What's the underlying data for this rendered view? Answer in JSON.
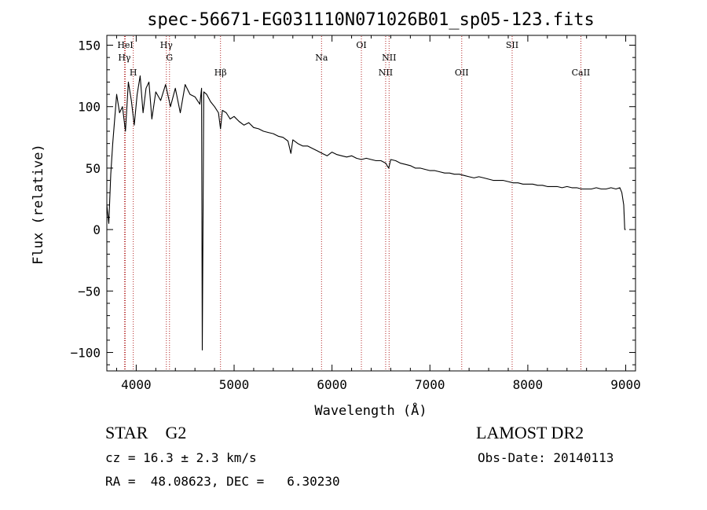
{
  "chart_data": {
    "type": "line",
    "title": "spec-56671-EG031110N071026B01_sp05-123.fits",
    "xlabel": "Wavelength (Å)",
    "ylabel": "Flux (relative)",
    "xlim": [
      3700,
      9100
    ],
    "ylim": [
      -115,
      158
    ],
    "x_ticks": [
      4000,
      5000,
      6000,
      7000,
      8000,
      9000
    ],
    "y_ticks": [
      -100,
      -50,
      0,
      50,
      100,
      150
    ],
    "grid": false,
    "legend": "none",
    "line_color": "#000000",
    "marker_color": "#b22222",
    "series": [
      {
        "x": [
          3700,
          3720,
          3740,
          3760,
          3780,
          3800,
          3830,
          3860,
          3890,
          3920,
          3950,
          3980,
          4010,
          4040,
          4070,
          4100,
          4130,
          4160,
          4200,
          4250,
          4300,
          4350,
          4400,
          4450,
          4500,
          4550,
          4600,
          4650,
          4668,
          4675,
          4690,
          4720,
          4760,
          4800,
          4840,
          4861,
          4880,
          4920,
          4960,
          5000,
          5050,
          5100,
          5150,
          5200,
          5250,
          5300,
          5350,
          5400,
          5450,
          5500,
          5550,
          5580,
          5600,
          5650,
          5700,
          5750,
          5800,
          5850,
          5900,
          5950,
          6000,
          6050,
          6100,
          6150,
          6200,
          6250,
          6300,
          6350,
          6400,
          6450,
          6500,
          6550,
          6563,
          6580,
          6600,
          6650,
          6700,
          6750,
          6800,
          6850,
          6900,
          6950,
          7000,
          7050,
          7100,
          7150,
          7200,
          7250,
          7300,
          7350,
          7400,
          7450,
          7500,
          7550,
          7600,
          7650,
          7700,
          7750,
          7800,
          7850,
          7900,
          7950,
          8000,
          8050,
          8100,
          8150,
          8200,
          8250,
          8300,
          8350,
          8400,
          8450,
          8500,
          8550,
          8600,
          8650,
          8700,
          8750,
          8800,
          8850,
          8900,
          8940,
          8960,
          8980,
          8990,
          9000
        ],
        "y": [
          20,
          5,
          45,
          70,
          90,
          110,
          95,
          100,
          80,
          120,
          105,
          85,
          110,
          125,
          95,
          115,
          120,
          90,
          112,
          105,
          118,
          100,
          115,
          95,
          118,
          110,
          108,
          102,
          115,
          -98,
          112,
          110,
          104,
          100,
          95,
          82,
          97,
          95,
          90,
          92,
          88,
          85,
          87,
          83,
          82,
          80,
          79,
          78,
          76,
          75,
          72,
          62,
          73,
          70,
          68,
          68,
          66,
          64,
          62,
          60,
          63,
          61,
          60,
          59,
          60,
          58,
          57,
          58,
          57,
          56,
          56,
          54,
          52,
          50,
          57,
          56,
          54,
          53,
          52,
          50,
          50,
          49,
          48,
          48,
          47,
          46,
          46,
          45,
          45,
          44,
          43,
          42,
          43,
          42,
          41,
          40,
          40,
          40,
          39,
          38,
          38,
          37,
          37,
          37,
          36,
          36,
          35,
          35,
          35,
          34,
          35,
          34,
          34,
          33,
          33,
          33,
          34,
          33,
          33,
          34,
          33,
          34,
          30,
          20,
          0,
          0
        ]
      }
    ],
    "lines": [
      {
        "name": "Hγ",
        "x": 3880,
        "row": 2
      },
      {
        "name": "HeI",
        "x": 3889,
        "row": 1
      },
      {
        "name": "H",
        "x": 3970,
        "row": 3
      },
      {
        "name": "Hγ",
        "x": 4308,
        "row": 1
      },
      {
        "name": "G",
        "x": 4340,
        "row": 2
      },
      {
        "name": "Hβ",
        "x": 4861,
        "row": 3
      },
      {
        "name": "Na",
        "x": 5893,
        "row": 2
      },
      {
        "name": "OI",
        "x": 6300,
        "row": 1
      },
      {
        "name": "NII",
        "x": 6548,
        "row": 3
      },
      {
        "name": "NII",
        "x": 6583,
        "row": 2
      },
      {
        "name": "OII",
        "x": 7325,
        "row": 3
      },
      {
        "name": "SII",
        "x": 7840,
        "row": 1
      },
      {
        "name": "CaII",
        "x": 8542,
        "row": 3
      }
    ]
  },
  "info": {
    "object_class": "STAR    G2",
    "survey": "LAMOST DR2",
    "cz": "cz = 16.3 ± 2.3 km/s",
    "obs_date": "Obs-Date: 20140113",
    "radec": "RA =  48.08623, DEC =   6.30230"
  }
}
